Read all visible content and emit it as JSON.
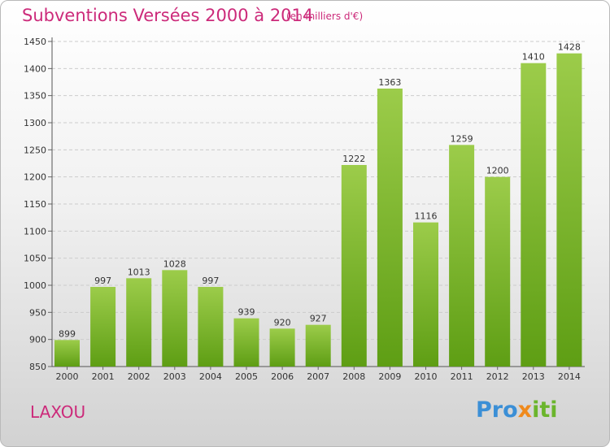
{
  "title": "Subventions Versées 2000 à 2014",
  "subtitle": "(en milliers d'€)",
  "city": "LAXOU",
  "logo": {
    "part1": "Pro",
    "part2": "x",
    "part3": "iti"
  },
  "colors": {
    "title": "#cc2a7a",
    "bar_light": "#9ccc4a",
    "bar_dark": "#5e9e14",
    "grid": "#cccccc"
  },
  "chart_data": {
    "type": "bar",
    "title": "Subventions Versées 2000 à 2014",
    "subtitle": "(en milliers d'€)",
    "categories": [
      "2000",
      "2001",
      "2002",
      "2003",
      "2004",
      "2005",
      "2006",
      "2007",
      "2008",
      "2009",
      "2010",
      "2011",
      "2012",
      "2013",
      "2014"
    ],
    "values": [
      899,
      997,
      1013,
      1028,
      997,
      939,
      920,
      927,
      1222,
      1363,
      1116,
      1259,
      1200,
      1410,
      1428
    ],
    "ylim": [
      850,
      1450
    ],
    "yticks": [
      850,
      900,
      950,
      1000,
      1050,
      1100,
      1150,
      1200,
      1250,
      1300,
      1350,
      1400,
      1450
    ],
    "grid": "horizontal-dashed",
    "xlabel": "",
    "ylabel": ""
  }
}
